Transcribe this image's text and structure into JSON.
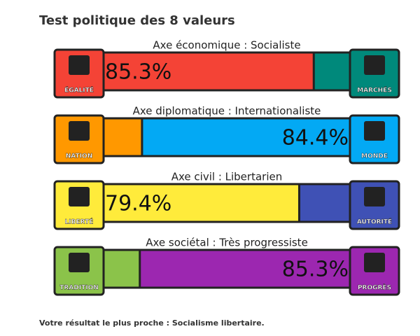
{
  "title": "Test politique des 8 valeurs",
  "axes": [
    {
      "label": "Axe économique : Socialiste",
      "left_icon": "ÉGALITÉ",
      "right_icon": "MARCHÉS",
      "left_color": "#f44336",
      "right_color": "#00897b",
      "side": "left",
      "value": 85.3,
      "value_label": "85.3%"
    },
    {
      "label": "Axe diplomatique : Internationaliste",
      "left_icon": "NATION",
      "right_icon": "MONDE",
      "left_color": "#ff9800",
      "right_color": "#03a9f4",
      "side": "right",
      "value": 84.4,
      "value_label": "84.4%"
    },
    {
      "label": "Axe civil : Libertarien",
      "left_icon": "LIBERTÉ",
      "right_icon": "AUTORITÉ",
      "left_color": "#ffeb3b",
      "right_color": "#3f51b5",
      "side": "left",
      "value": 79.4,
      "value_label": "79.4%"
    },
    {
      "label": "Axe sociétal : Très progressiste",
      "left_icon": "TRADITION",
      "right_icon": "PROGRÈS",
      "left_color": "#8bc34a",
      "right_color": "#9c27b0",
      "side": "right",
      "value": 85.3,
      "value_label": "85.3%"
    }
  ],
  "result": "Votre résultat le plus proche : Socialisme libertaire."
}
